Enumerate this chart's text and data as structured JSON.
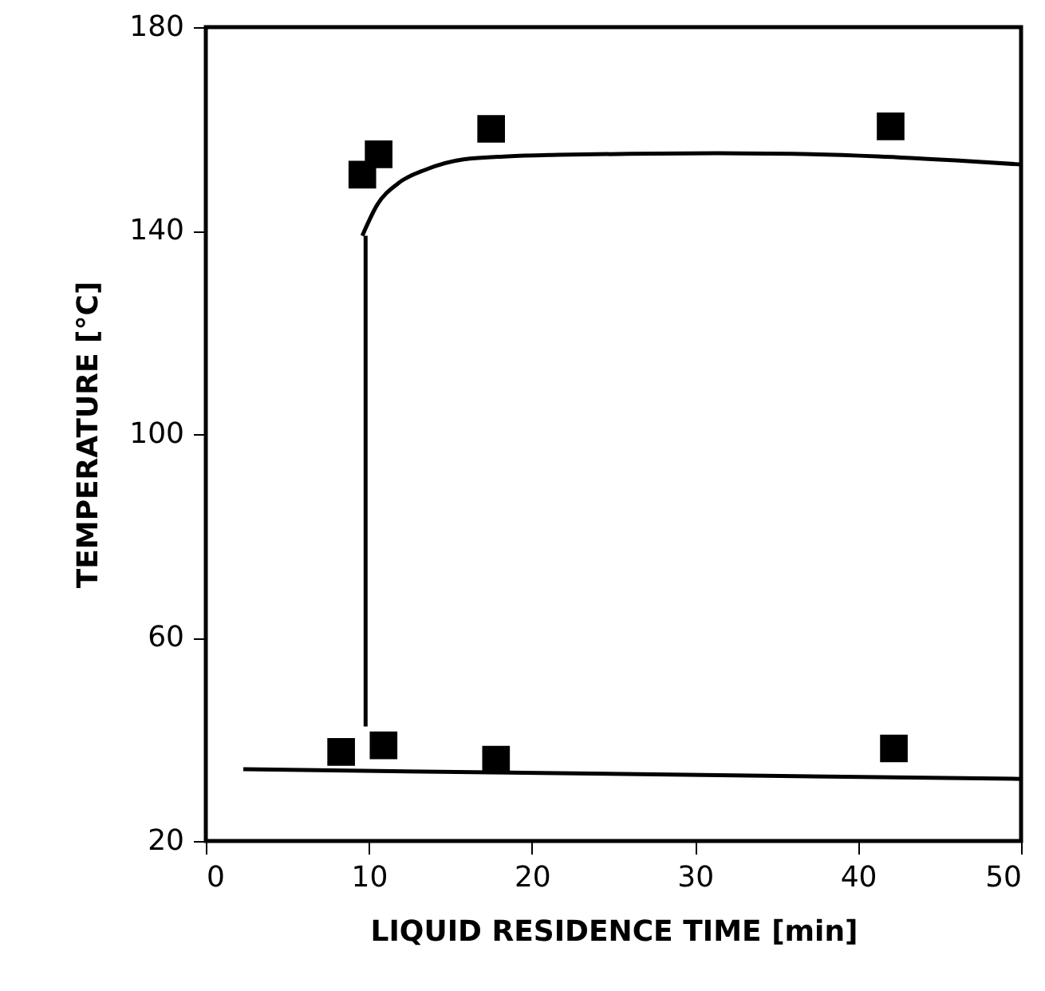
{
  "chart_data": {
    "type": "scatter",
    "xlabel": "LIQUID RESIDENCE TIME [min]",
    "ylabel": "TEMPERATURE [°C]",
    "xlim": [
      0,
      50
    ],
    "ylim": [
      20,
      180
    ],
    "xticks": [
      0,
      10,
      20,
      30,
      40,
      50
    ],
    "yticks": [
      20,
      60,
      100,
      140,
      180
    ],
    "grid": false,
    "marker": "square",
    "series": [
      {
        "color": "#000000",
        "x": [
          9.6,
          10.6,
          17.5,
          42
        ],
        "values": [
          151,
          155,
          160,
          160.5
        ]
      },
      {
        "color": "#000000",
        "x": [
          8.3,
          10.9,
          17.8,
          42.2
        ],
        "values": [
          37.5,
          38.8,
          36,
          38.2
        ]
      },
      {
        "type": "line",
        "color": "#000000",
        "marker": "none",
        "x": [
          9.6,
          10.5,
          11.8,
          13.5,
          15.8,
          18.5,
          21.6,
          26,
          31.4,
          36,
          41.2,
          46,
          50
        ],
        "values": [
          139,
          145,
          149.3,
          152,
          154,
          154.6,
          154.9,
          155.1,
          155.2,
          155.1,
          154.6,
          153.8,
          153
        ]
      },
      {
        "type": "line",
        "color": "#000000",
        "marker": "none",
        "x": [
          2.3,
          50
        ],
        "values": [
          34.1,
          32.2
        ]
      },
      {
        "type": "line",
        "color": "#000000",
        "marker": "none",
        "line_style": "solid",
        "x": [
          9.8,
          9.8
        ],
        "values": [
          139,
          42.5
        ]
      }
    ]
  }
}
